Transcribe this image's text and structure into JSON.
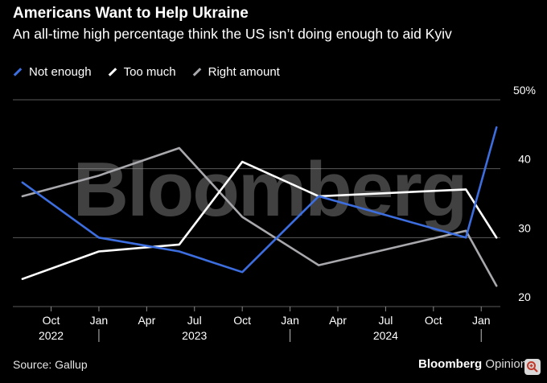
{
  "title": "Americans Want to Help Ukraine",
  "subtitle": "An all-time high percentage think the US isn’t doing enough to aid Kyiv",
  "legend": [
    {
      "label": "Not enough",
      "color": "#3d6ee0"
    },
    {
      "label": "Too much",
      "color": "#ffffff"
    },
    {
      "label": "Right amount",
      "color": "#a8a8ad"
    }
  ],
  "watermark": "Bloomberg",
  "source": "Source: Gallup",
  "brand": {
    "name": "Bloomberg",
    "suffix": "Opinion"
  },
  "colors": {
    "background": "#000000",
    "gridline": "#5a5a5a"
  },
  "chart_data": {
    "type": "line",
    "title": "Americans Want to Help Ukraine",
    "xlabel": "",
    "ylabel": "",
    "ylim": [
      20,
      50
    ],
    "yticks": [
      20,
      30,
      40,
      50
    ],
    "ytick_labels": [
      "20",
      "30",
      "40",
      "50%"
    ],
    "xlim": [
      2022.55,
      2025.1
    ],
    "xticks": [
      {
        "x": 2022.75,
        "label": "Oct"
      },
      {
        "x": 2023.0,
        "label": "Jan"
      },
      {
        "x": 2023.25,
        "label": "Apr"
      },
      {
        "x": 2023.5,
        "label": "Jul"
      },
      {
        "x": 2023.75,
        "label": "Oct"
      },
      {
        "x": 2024.0,
        "label": "Jan"
      },
      {
        "x": 2024.25,
        "label": "Apr"
      },
      {
        "x": 2024.5,
        "label": "Jul"
      },
      {
        "x": 2024.75,
        "label": "Oct"
      },
      {
        "x": 2025.0,
        "label": "Jan"
      }
    ],
    "year_labels": [
      {
        "x": 2022.75,
        "label": "2022"
      },
      {
        "x": 2023.5,
        "label": "2023"
      },
      {
        "x": 2024.5,
        "label": "2024"
      }
    ],
    "year_dividers": [
      2023.0,
      2024.0,
      2025.0
    ],
    "series": [
      {
        "name": "Not enough",
        "color": "#3d6ee0",
        "x": [
          2022.6,
          2023.0,
          2023.42,
          2023.75,
          2024.15,
          2024.92,
          2025.08
        ],
        "values": [
          38,
          30,
          28,
          25,
          36,
          30,
          46
        ]
      },
      {
        "name": "Too much",
        "color": "#ffffff",
        "x": [
          2022.6,
          2023.0,
          2023.42,
          2023.75,
          2024.15,
          2024.92,
          2025.08
        ],
        "values": [
          24,
          28,
          29,
          41,
          36,
          37,
          30
        ]
      },
      {
        "name": "Right amount",
        "color": "#a8a8ad",
        "x": [
          2022.6,
          2023.0,
          2023.42,
          2023.75,
          2024.15,
          2024.92,
          2025.08
        ],
        "values": [
          36,
          39,
          43,
          33,
          26,
          31,
          23
        ]
      }
    ]
  }
}
